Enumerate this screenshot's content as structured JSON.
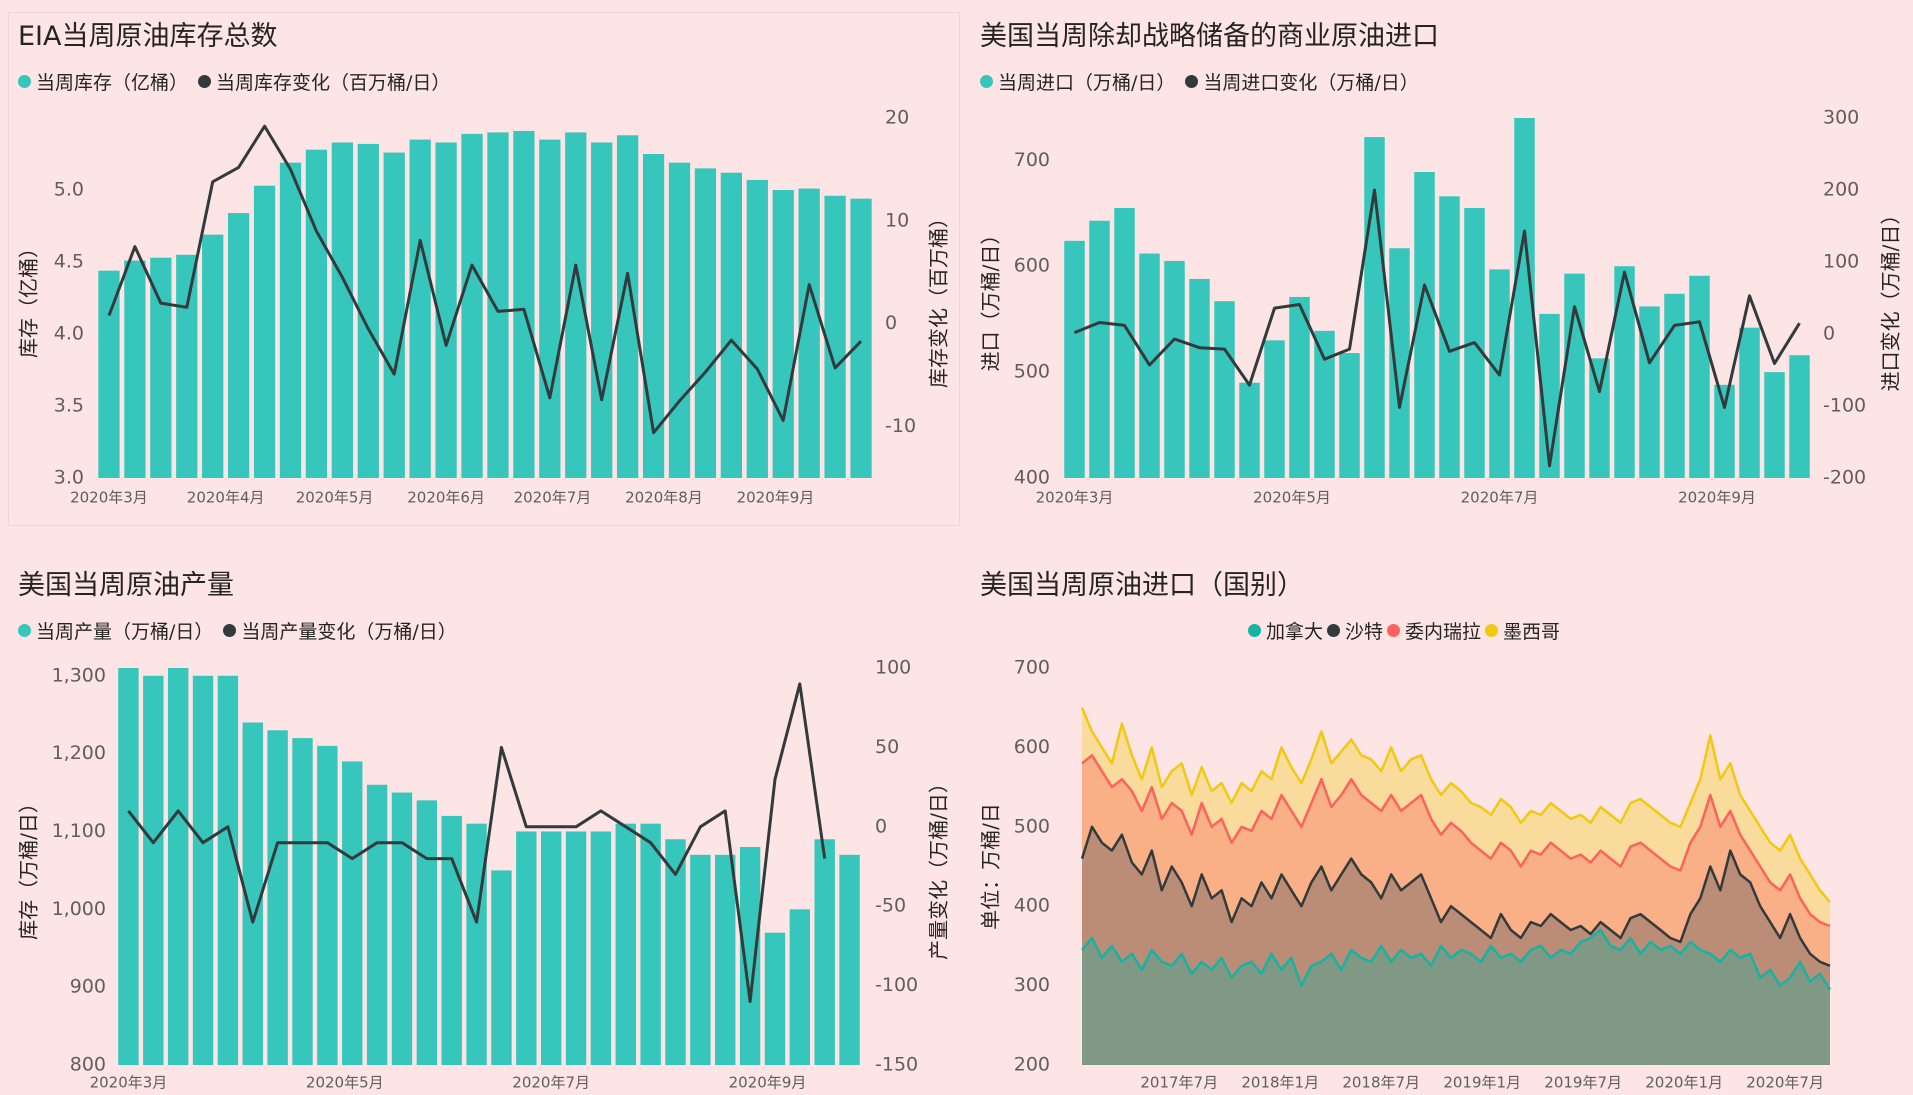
{
  "colors": {
    "bar": "#37c6bb",
    "line": "#333a3c",
    "canada": "#14b3a4",
    "saudi": "#333a3c",
    "venezuela": "#fc625e",
    "mexico": "#f2c811",
    "axis_text": "#605e5c",
    "title_text": "#252423"
  },
  "chart_data": [
    {
      "id": "inventory",
      "type": "bar+line",
      "title": "EIA当周原油库存总数",
      "legend": [
        "当周库存（亿桶）",
        "当周库存变化（百万桶/日）"
      ],
      "ylabel": "库存（亿桶）",
      "y2label": "库存变化（百万桶）",
      "ylim": [
        3.0,
        5.5
      ],
      "y_ticks": [
        "3.0",
        "3.5",
        "4.0",
        "4.5",
        "5.0"
      ],
      "y_tick_values": [
        3.0,
        3.5,
        4.0,
        4.5,
        5.0
      ],
      "y2lim": [
        -15,
        20
      ],
      "y2_ticks": [
        "-10",
        "0",
        "10",
        "20"
      ],
      "y2_tick_values": [
        -10,
        0,
        10,
        20
      ],
      "x_ticks": [
        "2020年3月",
        "2020年4月",
        "2020年5月",
        "2020年6月",
        "2020年7月",
        "2020年8月",
        "2020年9月"
      ],
      "x_tick_index": [
        0,
        4.5,
        8.7,
        13,
        17.1,
        21.4,
        25.7
      ],
      "bars": [
        4.44,
        4.51,
        4.53,
        4.55,
        4.69,
        4.84,
        5.03,
        5.19,
        5.28,
        5.33,
        5.32,
        5.26,
        5.35,
        5.33,
        5.39,
        5.4,
        5.41,
        5.35,
        5.4,
        5.33,
        5.38,
        5.25,
        5.19,
        5.15,
        5.12,
        5.07,
        5.0,
        5.01,
        4.96,
        4.94
      ],
      "line": [
        0.8,
        7.5,
        2.0,
        1.6,
        13.8,
        15.2,
        19.2,
        15.0,
        9.0,
        4.5,
        -0.5,
        -4.9,
        8.1,
        -2.1,
        5.7,
        1.2,
        1.4,
        -7.2,
        5.7,
        -7.4,
        4.9,
        -10.6,
        -7.5,
        -4.7,
        -1.6,
        -4.4,
        -9.4,
        3.8,
        -4.3,
        -1.7
      ]
    },
    {
      "id": "imports",
      "type": "bar+line",
      "title": "美国当周除却战略储备的商业原油进口",
      "legend": [
        "当周进口（万桶/日）",
        "当周进口变化（万桶/日）"
      ],
      "ylabel": "进口（万桶/日）",
      "y2label": "进口变化（万桶/日）",
      "ylim": [
        400,
        740
      ],
      "y_ticks": [
        "400",
        "500",
        "600",
        "700"
      ],
      "y_tick_values": [
        400,
        500,
        600,
        700
      ],
      "y2lim": [
        -200,
        300
      ],
      "y2_ticks": [
        "-200",
        "-100",
        "0",
        "100",
        "200",
        "300"
      ],
      "y2_tick_values": [
        -200,
        -100,
        0,
        100,
        200,
        300
      ],
      "x_ticks": [
        "2020年3月",
        "2020年5月",
        "2020年7月",
        "2020年9月"
      ],
      "x_tick_index": [
        0,
        8.7,
        17,
        25.7
      ],
      "bars": [
        624,
        643,
        655,
        612,
        605,
        588,
        567,
        490,
        530,
        571,
        539,
        518,
        722,
        617,
        689,
        666,
        655,
        597,
        740,
        555,
        593,
        513,
        600,
        562,
        574,
        591,
        488,
        542,
        500,
        516
      ],
      "line": [
        2,
        16,
        12,
        -43,
        -7,
        -19,
        -21,
        -71,
        36,
        41,
        -35,
        -21,
        200,
        -102,
        68,
        -24,
        -12,
        -57,
        143,
        -183,
        38,
        -80,
        86,
        -40,
        12,
        17,
        -102,
        53,
        -41,
        15
      ]
    },
    {
      "id": "production",
      "type": "bar+line",
      "title": "美国当周原油产量",
      "legend": [
        "当周产量（万桶/日）",
        "当周产量变化（万桶/日）"
      ],
      "ylabel": "库存（万桶/日）",
      "y2label": "产量变化（万桶/日）",
      "ylim": [
        800,
        1310
      ],
      "y_ticks": [
        "800",
        "900",
        "1,000",
        "1,100",
        "1,200",
        "1,300"
      ],
      "y_tick_values": [
        800,
        900,
        1000,
        1100,
        1200,
        1300
      ],
      "y2lim": [
        -150,
        100
      ],
      "y2_ticks": [
        "-150",
        "-100",
        "-50",
        "0",
        "50",
        "100"
      ],
      "y2_tick_values": [
        -150,
        -100,
        -50,
        0,
        50,
        100
      ],
      "x_ticks": [
        "2020年3月",
        "2020年5月",
        "2020年7月",
        "2020年9月"
      ],
      "x_tick_index": [
        0,
        8.7,
        17,
        25.7
      ],
      "bars": [
        1310,
        1300,
        1310,
        1300,
        1300,
        1240,
        1230,
        1220,
        1210,
        1190,
        1160,
        1150,
        1140,
        1120,
        1110,
        1050,
        1100,
        1100,
        1100,
        1100,
        1110,
        1110,
        1090,
        1070,
        1070,
        1080,
        970,
        1000,
        1090,
        1070
      ],
      "line": [
        10,
        -10,
        10,
        -10,
        0,
        -60,
        -10,
        -10,
        -10,
        -20,
        -10,
        -10,
        -20,
        -20,
        -60,
        50,
        0,
        0,
        0,
        10,
        0,
        -10,
        -30,
        0,
        10,
        -110,
        30,
        90,
        -20
      ],
      "line_note": "29 change points drawn"
    },
    {
      "id": "imports_by_country",
      "type": "area",
      "title": "美国当周原油进口（国别）",
      "legend": [
        "加拿大",
        "沙特",
        "委内瑞拉",
        "墨西哥"
      ],
      "ylabel": "单位：万桶/日",
      "ylim": [
        200,
        700
      ],
      "y_ticks": [
        "200",
        "300",
        "400",
        "500",
        "600",
        "700"
      ],
      "y_tick_values": [
        200,
        300,
        400,
        500,
        600,
        700
      ],
      "x_ticks": [
        "2017年7月",
        "2018年1月",
        "2018年7月",
        "2019年1月",
        "2019年7月",
        "2020年1月",
        "2020年7月"
      ],
      "x_tick_fraction": [
        0.13,
        0.265,
        0.4,
        0.535,
        0.67,
        0.805,
        0.94
      ],
      "series_cumulative": {
        "canada": [
          345,
          360,
          335,
          350,
          330,
          340,
          320,
          345,
          330,
          325,
          340,
          315,
          330,
          320,
          335,
          310,
          325,
          330,
          315,
          340,
          320,
          335,
          300,
          325,
          330,
          340,
          320,
          345,
          335,
          330,
          350,
          330,
          345,
          335,
          340,
          325,
          350,
          335,
          345,
          340,
          330,
          350,
          335,
          340,
          330,
          345,
          350,
          335,
          345,
          340,
          355,
          360,
          370,
          350,
          345,
          360,
          340,
          355,
          345,
          350,
          340,
          355,
          345,
          340,
          330,
          345,
          335,
          340,
          310,
          320,
          300,
          310,
          330,
          305,
          315,
          295
        ],
        "saudi": [
          460,
          500,
          480,
          470,
          490,
          455,
          440,
          470,
          420,
          450,
          430,
          400,
          440,
          410,
          420,
          380,
          410,
          400,
          430,
          410,
          440,
          420,
          400,
          430,
          450,
          420,
          440,
          460,
          440,
          430,
          410,
          440,
          420,
          430,
          440,
          410,
          380,
          400,
          390,
          380,
          370,
          360,
          390,
          370,
          360,
          380,
          375,
          390,
          380,
          370,
          375,
          365,
          380,
          370,
          360,
          385,
          390,
          380,
          370,
          360,
          355,
          390,
          410,
          450,
          420,
          470,
          440,
          430,
          400,
          380,
          360,
          390,
          360,
          340,
          330,
          325
        ],
        "venezuela": [
          580,
          590,
          570,
          550,
          560,
          545,
          520,
          550,
          510,
          530,
          520,
          490,
          530,
          500,
          510,
          480,
          500,
          495,
          520,
          510,
          540,
          520,
          500,
          530,
          560,
          525,
          540,
          560,
          540,
          530,
          520,
          540,
          520,
          530,
          540,
          510,
          490,
          505,
          495,
          480,
          470,
          460,
          480,
          470,
          450,
          470,
          465,
          480,
          470,
          460,
          465,
          455,
          470,
          460,
          450,
          475,
          480,
          470,
          460,
          450,
          445,
          480,
          500,
          540,
          500,
          520,
          490,
          470,
          450,
          430,
          420,
          440,
          410,
          390,
          380,
          375
        ],
        "mexico": [
          650,
          620,
          600,
          580,
          630,
          590,
          560,
          600,
          550,
          570,
          580,
          540,
          575,
          545,
          555,
          530,
          555,
          545,
          570,
          560,
          600,
          575,
          555,
          585,
          620,
          580,
          595,
          610,
          590,
          585,
          570,
          600,
          570,
          585,
          590,
          560,
          540,
          555,
          545,
          530,
          525,
          515,
          535,
          525,
          505,
          520,
          515,
          530,
          520,
          510,
          515,
          505,
          525,
          515,
          505,
          530,
          535,
          525,
          515,
          505,
          500,
          530,
          560,
          615,
          560,
          580,
          540,
          520,
          500,
          480,
          470,
          490,
          460,
          440,
          420,
          405
        ]
      }
    }
  ]
}
